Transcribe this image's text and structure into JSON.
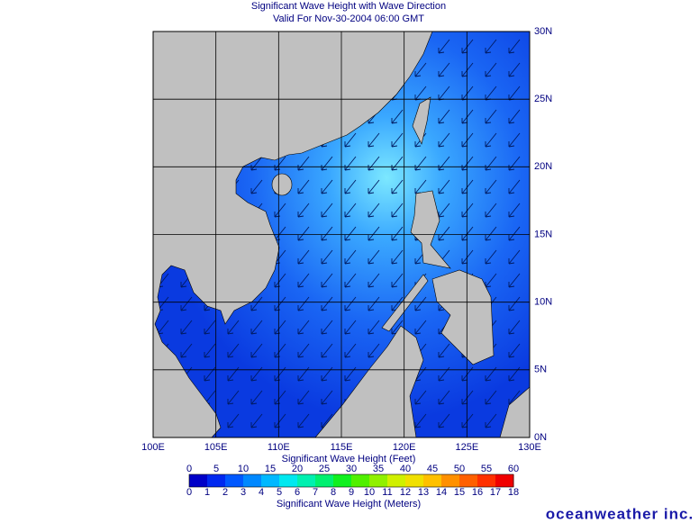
{
  "map": {
    "title": "Significant Wave Height with Wave Direction",
    "subtitle": "Valid For Nov-30-2004 06:00 GMT",
    "xlim": [
      100,
      130
    ],
    "ylim": [
      0,
      30
    ],
    "xticks": [
      {
        "value": 100,
        "label": "100E"
      },
      {
        "value": 105,
        "label": "105E"
      },
      {
        "value": 110,
        "label": "110E"
      },
      {
        "value": 115,
        "label": "115E"
      },
      {
        "value": 120,
        "label": "120E"
      },
      {
        "value": 125,
        "label": "125E"
      },
      {
        "value": 130,
        "label": "130E"
      }
    ],
    "yticks": [
      {
        "value": 0,
        "label": "0N"
      },
      {
        "value": 5,
        "label": "5N"
      },
      {
        "value": 10,
        "label": "10N"
      },
      {
        "value": 15,
        "label": "15N"
      },
      {
        "value": 20,
        "label": "20N"
      },
      {
        "value": 25,
        "label": "25N"
      },
      {
        "value": 30,
        "label": "30N"
      }
    ]
  },
  "colorbar": {
    "feet_label": "Significant Wave Height (Feet)",
    "meters_label": "Significant Wave Height (Meters)",
    "feet_ticks": [
      0,
      5,
      10,
      15,
      20,
      25,
      30,
      35,
      40,
      45,
      50,
      55,
      60
    ],
    "meter_ticks": [
      0,
      1,
      2,
      3,
      4,
      5,
      6,
      7,
      8,
      9,
      10,
      11,
      12,
      13,
      14,
      15,
      16,
      17,
      18
    ],
    "colors": [
      "#0000c8",
      "#0028f0",
      "#0058ff",
      "#0088ff",
      "#00b8ff",
      "#00e8f0",
      "#00f0b0",
      "#00f070",
      "#10f020",
      "#50f000",
      "#90f000",
      "#d0f000",
      "#f0e000",
      "#ffc000",
      "#ff9000",
      "#ff6000",
      "#ff3000",
      "#f00000"
    ]
  },
  "brand": "oceanweather inc."
}
